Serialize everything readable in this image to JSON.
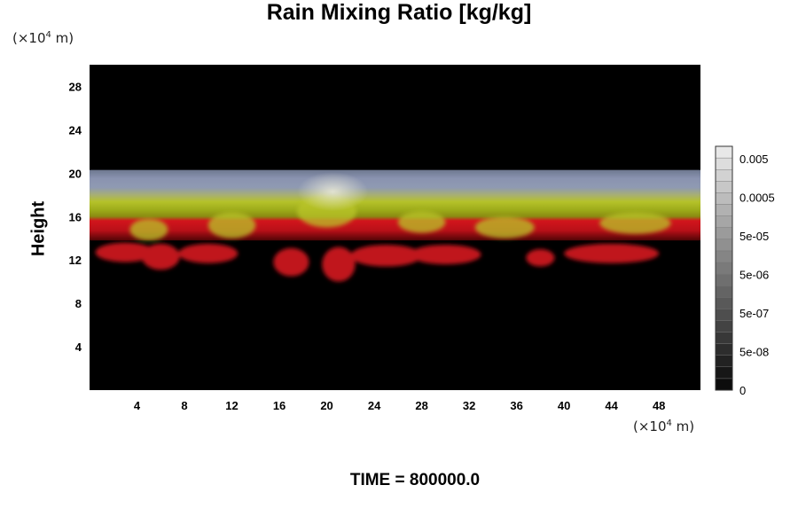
{
  "chart_data": {
    "type": "heatmap",
    "title": "Rain Mixing Ratio [kg/kg]",
    "xlabel": "",
    "ylabel": "Height",
    "x_unit": {
      "prefix": "(×10",
      "exp": "4",
      "suffix": " m)"
    },
    "y_unit": {
      "prefix": "(×10",
      "exp": "4",
      "suffix": " m)"
    },
    "xlim": [
      0,
      51.5
    ],
    "ylim": [
      0,
      30
    ],
    "x_ticks": [
      4,
      8,
      12,
      16,
      20,
      24,
      28,
      32,
      36,
      40,
      44,
      48
    ],
    "y_ticks": [
      4,
      8,
      12,
      16,
      20,
      24,
      28
    ],
    "colorbar": {
      "labels": [
        "0.005",
        "0.0005",
        "5e-05",
        "5e-06",
        "5e-07",
        "5e-08",
        "0"
      ],
      "levels": 21
    },
    "features": [
      {
        "band": "red",
        "y_range": [
          10.5,
          13.8
        ]
      },
      {
        "band": "yellow-green",
        "y_range": [
          13.5,
          17.5
        ]
      },
      {
        "band": "blue-gray",
        "y_range": [
          16.5,
          20.3
        ]
      }
    ]
  },
  "footer": {
    "time": "TIME = 800000.0"
  }
}
